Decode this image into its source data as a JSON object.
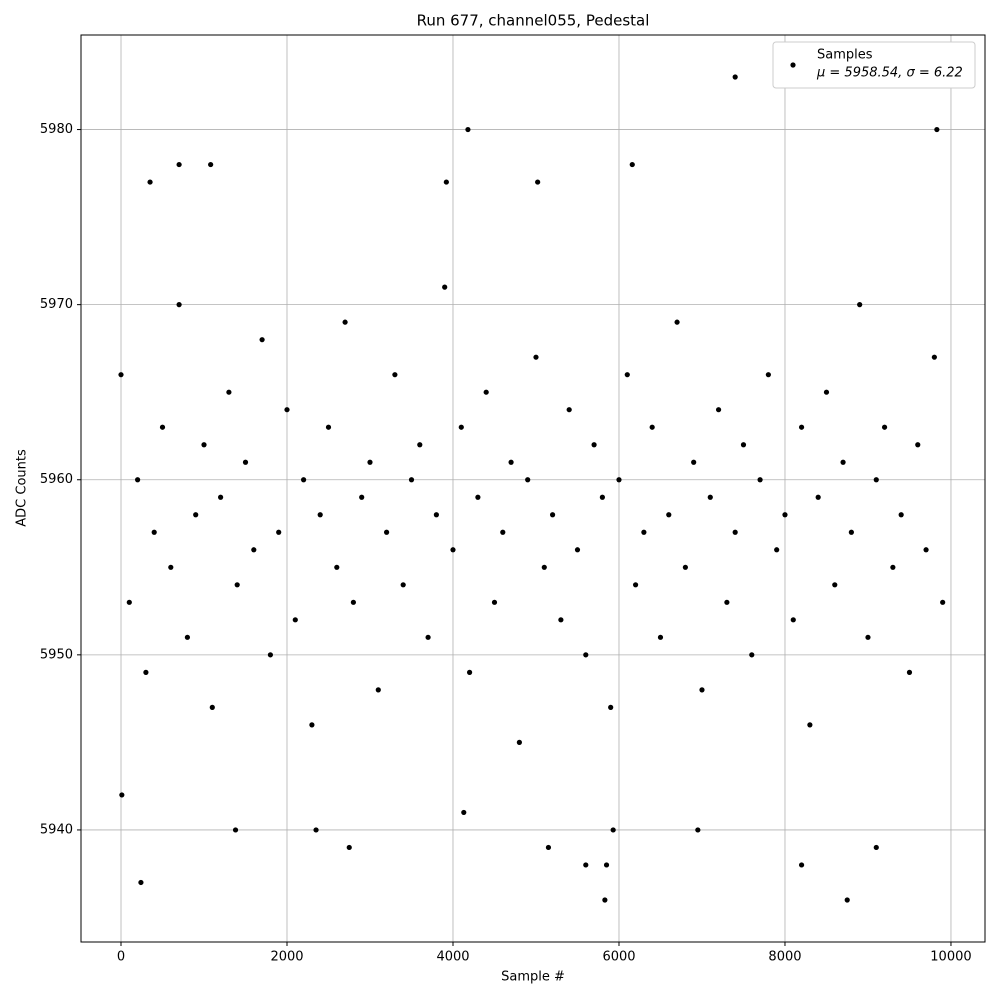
{
  "chart_data": {
    "type": "scatter",
    "title": "Run 677, channel055, Pedestal",
    "x_label": "Sample #",
    "y_label": "ADC Counts",
    "series": [
      {
        "name": "Samples",
        "color": "#000000",
        "x": [
          0,
          100,
          200,
          300,
          400,
          500,
          600,
          700,
          800,
          900,
          1000,
          1100,
          1200,
          1300,
          1400,
          1500,
          1600,
          1700,
          1800,
          1900,
          2000,
          2100,
          2200,
          2300,
          2400,
          2500,
          2600,
          2700,
          2800,
          2900,
          3000,
          3100,
          3200,
          3300,
          3400,
          3500,
          3600,
          3700,
          3800,
          3900,
          4000,
          4100,
          4200,
          4300,
          4400,
          4500,
          4600,
          4700,
          4800,
          4900,
          5000,
          5100,
          5200,
          5300,
          5400,
          5500,
          5600,
          5700,
          5800,
          5900,
          6000,
          6100,
          6200,
          6300,
          6400,
          6500,
          6600,
          6700,
          6800,
          6900,
          7000,
          7100,
          7200,
          7300,
          7400,
          7500,
          7600,
          7700,
          7800,
          7900,
          8000,
          8100,
          8200,
          8300,
          8400,
          8500,
          8600,
          8700,
          8800,
          8900,
          9000,
          9100,
          9200,
          9300,
          9400,
          9500,
          9600,
          9700,
          9800,
          9900,
          10,
          240,
          350,
          700,
          1080,
          1380,
          2350,
          2750,
          3920,
          4130,
          4180,
          5020,
          5150,
          5600,
          5830,
          5850,
          5930,
          6160,
          6950,
          7400,
          8200,
          8750,
          9100,
          9830
        ],
        "values": [
          5966,
          5953,
          5960,
          5949,
          5957,
          5963,
          5955,
          5970,
          5951,
          5958,
          5962,
          5947,
          5959,
          5965,
          5954,
          5961,
          5956,
          5968,
          5950,
          5957,
          5964,
          5952,
          5960,
          5946,
          5958,
          5963,
          5955,
          5969,
          5953,
          5959,
          5961,
          5948,
          5957,
          5966,
          5954,
          5960,
          5962,
          5951,
          5958,
          5971,
          5956,
          5963,
          5949,
          5959,
          5965,
          5953,
          5957,
          5961,
          5945,
          5960,
          5967,
          5955,
          5958,
          5952,
          5964,
          5956,
          5950,
          5962,
          5959,
          5947,
          5960,
          5966,
          5954,
          5957,
          5963,
          5951,
          5958,
          5969,
          5955,
          5961,
          5948,
          5959,
          5964,
          5953,
          5957,
          5962,
          5950,
          5960,
          5966,
          5956,
          5958,
          5952,
          5963,
          5946,
          5959,
          5965,
          5954,
          5961,
          5957,
          5970,
          5951,
          5960,
          5963,
          5955,
          5958,
          5949,
          5962,
          5956,
          5967,
          5953,
          5942,
          5937,
          5977,
          5978,
          5978,
          5940,
          5940,
          5939,
          5977,
          5941,
          5980,
          5977,
          5939,
          5938,
          5936,
          5938,
          5940,
          5978,
          5940,
          5983,
          5938,
          5936,
          5939,
          5980
        ]
      }
    ],
    "legend_stats": "μ = 5958.54, σ = 6.22",
    "legend_position": "upper right",
    "xlim": [
      -482,
      10410
    ],
    "ylim": [
      5933.6,
      5985.4
    ],
    "xticks": [
      0,
      2000,
      4000,
      6000,
      8000,
      10000
    ],
    "yticks": [
      5940,
      5950,
      5960,
      5970,
      5980
    ],
    "grid": true
  }
}
